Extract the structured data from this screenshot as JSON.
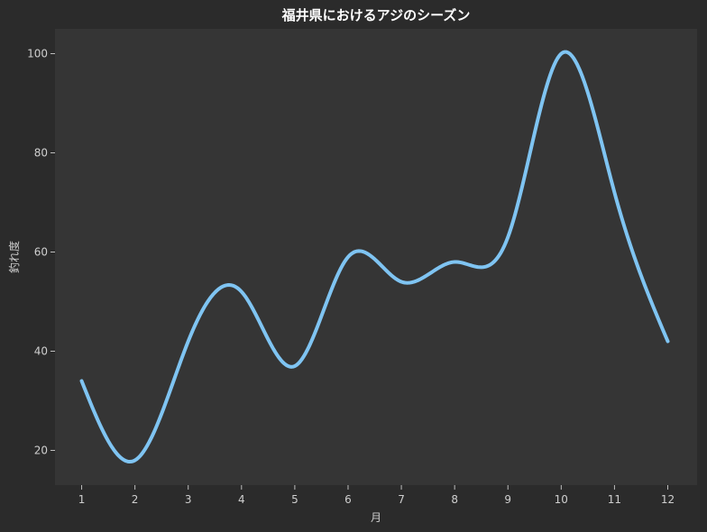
{
  "chart_data": {
    "type": "line",
    "title": "福井県におけるアジのシーズン",
    "xlabel": "月",
    "ylabel": "釣れ度",
    "x": [
      1,
      2,
      3,
      4,
      5,
      6,
      7,
      8,
      9,
      10,
      11,
      12
    ],
    "series": [
      {
        "values": [
          34,
          18,
          42,
          52,
          37,
          59,
          54,
          58,
          63,
          100,
          72,
          42
        ]
      }
    ],
    "xticks": [
      1,
      2,
      3,
      4,
      5,
      6,
      7,
      8,
      9,
      10,
      11,
      12
    ],
    "yticks": [
      20,
      40,
      60,
      80,
      100
    ],
    "xlim": [
      0.5,
      12.55
    ],
    "ylim": [
      13,
      105
    ],
    "grid": false,
    "colors": {
      "figure_background": "#2b2b2b",
      "plot_background": "#353535",
      "line": "#7fc4f2",
      "text": "#cfcfcf",
      "title": "#ffffff"
    }
  }
}
